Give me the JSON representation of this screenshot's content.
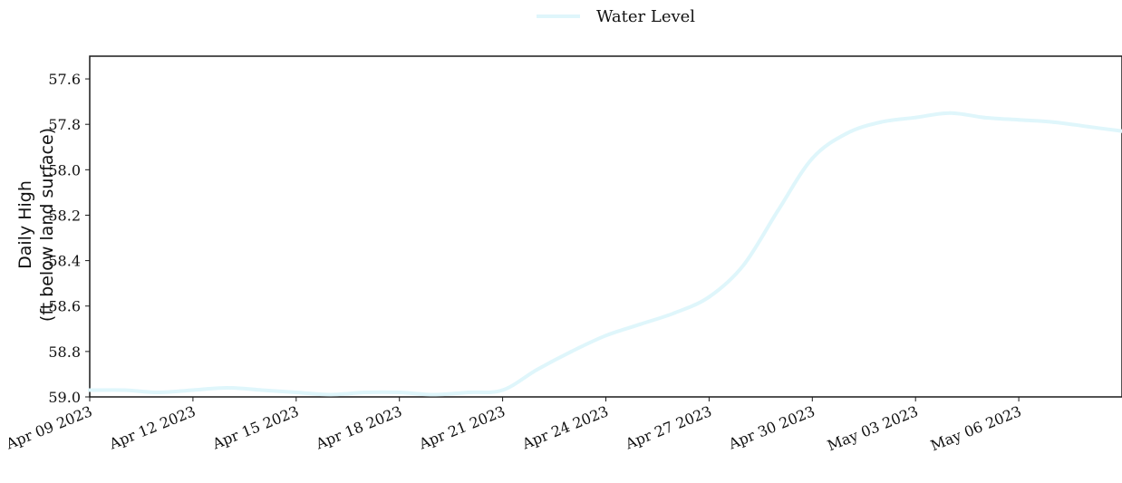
{
  "chart_data": {
    "type": "line",
    "title": "",
    "xlabel": "",
    "ylabel": [
      "Daily High",
      "(ft below land surface)"
    ],
    "y_axis_inverted": true,
    "ylim": [
      57.5,
      59.0
    ],
    "yticks": [
      "57.6",
      "57.8",
      "58.0",
      "58.2",
      "58.4",
      "58.6",
      "58.8",
      "59.0"
    ],
    "xlim": [
      "2023-04-09",
      "2023-05-09"
    ],
    "xticks": [
      "Apr 09 2023",
      "Apr 12 2023",
      "Apr 15 2023",
      "Apr 18 2023",
      "Apr 21 2023",
      "Apr 24 2023",
      "Apr 27 2023",
      "Apr 30 2023",
      "May 03 2023",
      "May 06 2023"
    ],
    "legend_position": "top-center",
    "grid": false,
    "series": [
      {
        "name": "Water Level",
        "color": "#dff6fb",
        "x": [
          "2023-04-09",
          "2023-04-10",
          "2023-04-11",
          "2023-04-12",
          "2023-04-13",
          "2023-04-14",
          "2023-04-15",
          "2023-04-16",
          "2023-04-17",
          "2023-04-18",
          "2023-04-19",
          "2023-04-20",
          "2023-04-21",
          "2023-04-22",
          "2023-04-23",
          "2023-04-24",
          "2023-04-25",
          "2023-04-26",
          "2023-04-27",
          "2023-04-28",
          "2023-04-29",
          "2023-04-30",
          "2023-05-01",
          "2023-05-02",
          "2023-05-03",
          "2023-05-04",
          "2023-05-05",
          "2023-05-06",
          "2023-05-07",
          "2023-05-08",
          "2023-05-09"
        ],
        "y": [
          58.97,
          58.97,
          58.98,
          58.97,
          58.96,
          58.97,
          58.98,
          58.99,
          58.98,
          58.98,
          58.99,
          58.98,
          58.97,
          58.88,
          58.8,
          58.73,
          58.68,
          58.63,
          58.56,
          58.42,
          58.18,
          57.95,
          57.84,
          57.79,
          57.77,
          57.75,
          57.77,
          57.78,
          57.79,
          57.81,
          57.83
        ]
      }
    ]
  }
}
